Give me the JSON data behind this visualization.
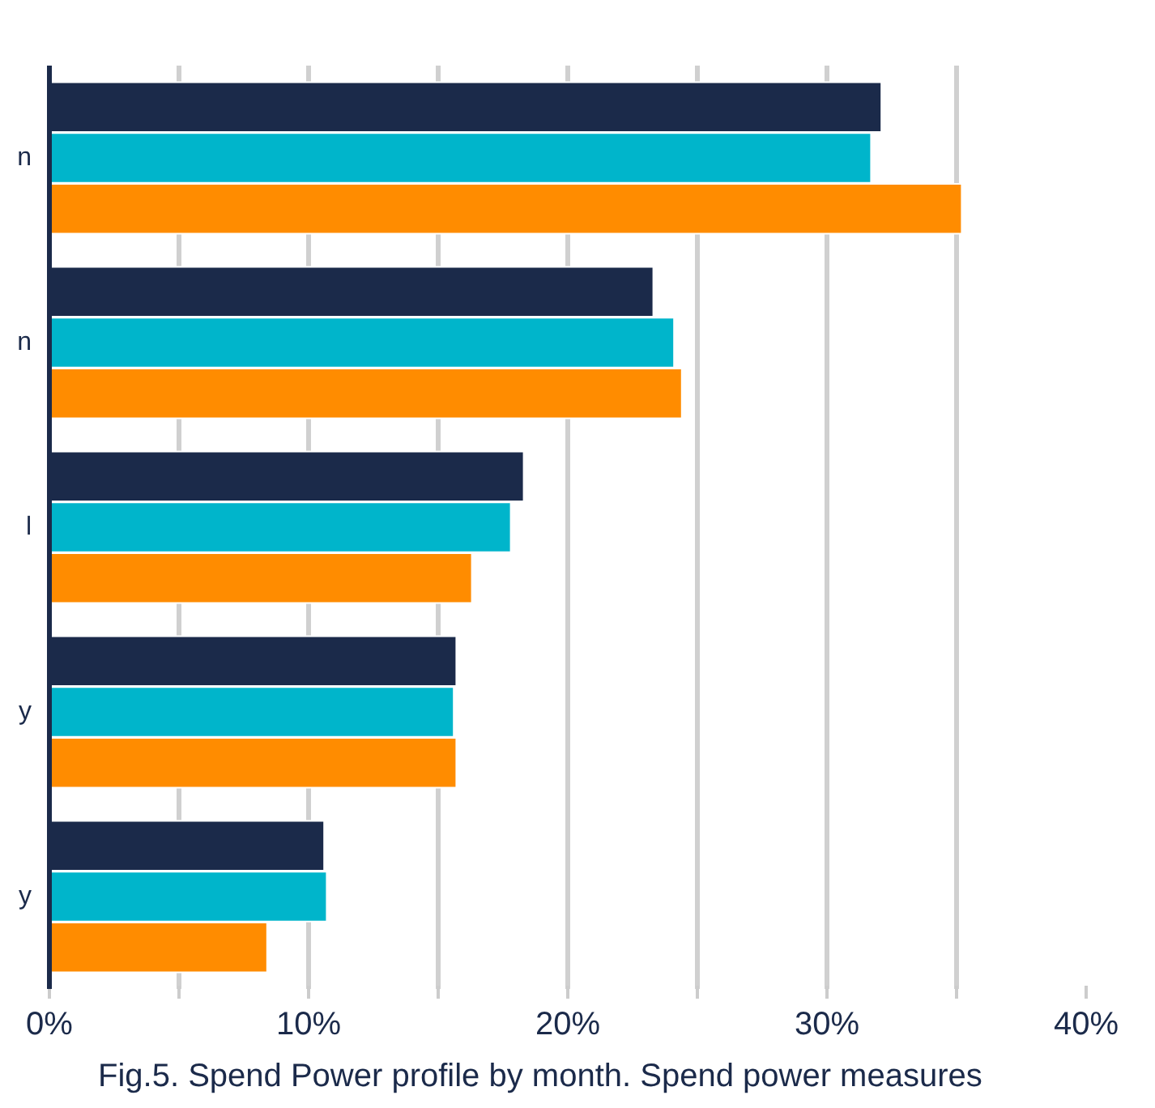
{
  "chart_data": {
    "type": "bar",
    "orientation": "horizontal",
    "categories": [
      "n",
      "n",
      "l",
      "y",
      "y"
    ],
    "series": [
      {
        "color": "#1b2a4a",
        "values": [
          32.1,
          23.3,
          18.3,
          15.7,
          10.6
        ]
      },
      {
        "color": "#00b5cb",
        "values": [
          31.7,
          24.1,
          17.8,
          15.6,
          10.7
        ]
      },
      {
        "color": "#ff8c00",
        "values": [
          35.2,
          24.4,
          16.3,
          15.7,
          8.4
        ]
      }
    ],
    "xlim": [
      0,
      40
    ],
    "xticks": [
      {
        "value": 0,
        "label": "0%"
      },
      {
        "value": 5,
        "label": null
      },
      {
        "value": 10,
        "label": "10%"
      },
      {
        "value": 15,
        "label": null
      },
      {
        "value": 20,
        "label": "20%"
      },
      {
        "value": 25,
        "label": null
      },
      {
        "value": 30,
        "label": "30%"
      },
      {
        "value": 35,
        "label": null
      },
      {
        "value": 40,
        "label": "40%"
      }
    ],
    "grid": "x",
    "annotations": [
      "Fig.5. Spend Power profile by month. Spend power measures"
    ]
  }
}
